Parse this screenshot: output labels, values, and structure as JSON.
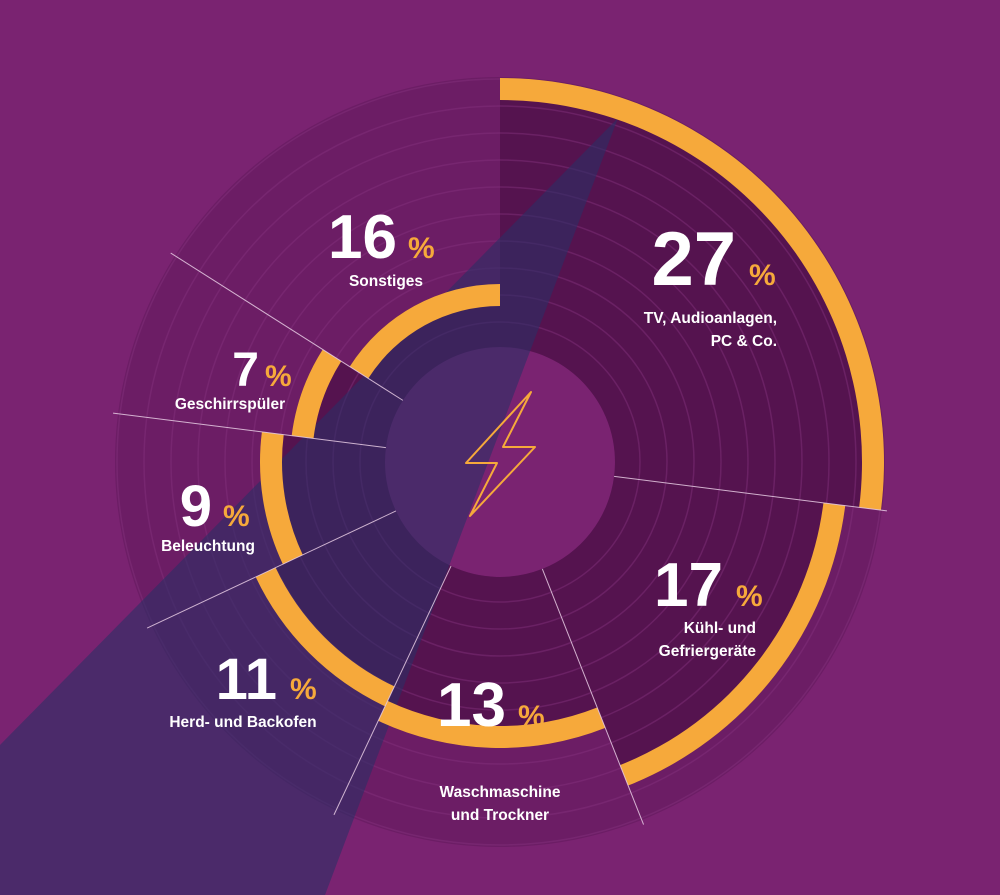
{
  "chart_data": {
    "type": "pie",
    "unit": "%",
    "slices": [
      {
        "value": 27,
        "label_lines": [
          "TV, Audioanlagen,",
          "PC & Co."
        ]
      },
      {
        "value": 17,
        "label_lines": [
          "Kühl- und",
          "Gefriergeräte"
        ]
      },
      {
        "value": 13,
        "label_lines": [
          "Waschmaschine",
          "und Trockner"
        ]
      },
      {
        "value": 11,
        "label_lines": [
          "Herd- und Backofen"
        ]
      },
      {
        "value": 9,
        "label_lines": [
          "Beleuchtung"
        ]
      },
      {
        "value": 7,
        "label_lines": [
          "Geschirrspüler"
        ]
      },
      {
        "value": 16,
        "label_lines": [
          "Sonstiges"
        ]
      }
    ]
  },
  "center_icon": "lightning-bolt-icon",
  "colors": {
    "background": "#7a2371",
    "ring_area": "#6c1d65",
    "ring_line": "#86327e",
    "segment": "#55134f",
    "accent": "#f6a93b",
    "separator": "#e7cde4",
    "beam": "#2c2f66",
    "text": "#ffffff"
  }
}
